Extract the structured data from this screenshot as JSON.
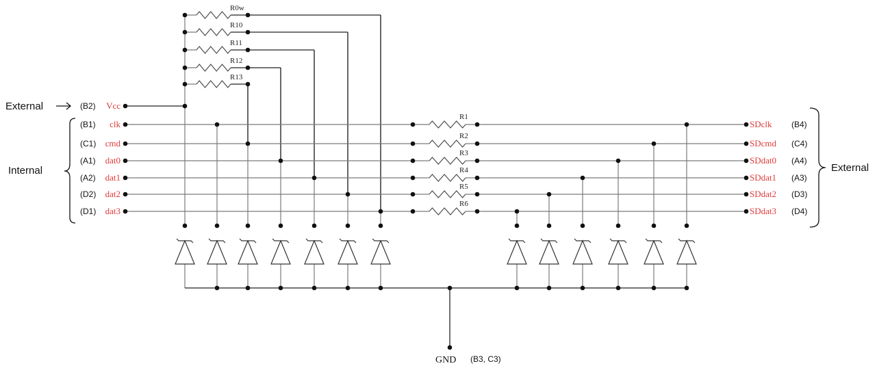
{
  "left_pins": [
    {
      "name": "Vcc",
      "ball": "(B2)"
    },
    {
      "name": "clk",
      "ball": "(B1)"
    },
    {
      "name": "cmd",
      "ball": "(C1)"
    },
    {
      "name": "dat0",
      "ball": "(A1)"
    },
    {
      "name": "dat1",
      "ball": "(A2)"
    },
    {
      "name": "dat2",
      "ball": "(D2)"
    },
    {
      "name": "dat3",
      "ball": "(D1)"
    }
  ],
  "right_pins": [
    {
      "name": "SDclk",
      "ball": "(B4)"
    },
    {
      "name": "SDcmd",
      "ball": "(C4)"
    },
    {
      "name": "SDdat0",
      "ball": "(A4)"
    },
    {
      "name": "SDdat1",
      "ball": "(A3)"
    },
    {
      "name": "SDdat2",
      "ball": "(D3)"
    },
    {
      "name": "SDdat3",
      "ball": "(D4)"
    }
  ],
  "pullup_resistors": [
    "R0w",
    "R10",
    "R11",
    "R12",
    "R13"
  ],
  "series_resistors": [
    "R1",
    "R2",
    "R3",
    "R4",
    "R5",
    "R6"
  ],
  "labels": {
    "external_left": "External",
    "internal": "Internal",
    "external_right": "External"
  },
  "ground": {
    "name": "GND",
    "ball": "(B3, C3)"
  },
  "colors": {
    "pin_label": "#e03a3a",
    "wire": "#7a7a7a",
    "node": "#111111"
  }
}
